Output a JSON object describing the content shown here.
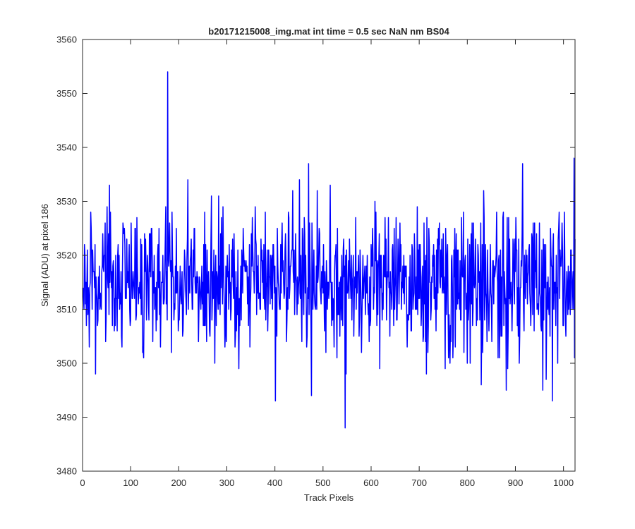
{
  "chart_data": {
    "type": "line",
    "title": "b20171215008_img.mat int time = 0.5 sec  NaN nm BS04",
    "xlabel": "Track Pixels",
    "ylabel": "Signal (ADU) at pixel 186",
    "xlim": [
      0,
      1024
    ],
    "ylim": [
      3480,
      3560
    ],
    "xticks": [
      0,
      100,
      200,
      300,
      400,
      500,
      600,
      700,
      800,
      900,
      1000
    ],
    "yticks": [
      3480,
      3490,
      3500,
      3510,
      3520,
      3530,
      3540,
      3550,
      3560
    ],
    "grid": false,
    "line_color": "#0000ff",
    "series": [
      {
        "x_start": 1,
        "x_step": 1,
        "points_count": 1024,
        "mean": 3515,
        "noise_sd": 6.5,
        "noise_range": [
          3495,
          3537
        ],
        "extremes": [
          {
            "x": 177,
            "y": 3554
          },
          {
            "x": 186,
            "y": 3528
          },
          {
            "x": 401,
            "y": 3493
          },
          {
            "x": 470,
            "y": 3537
          },
          {
            "x": 476,
            "y": 3494
          },
          {
            "x": 546,
            "y": 3488
          },
          {
            "x": 881,
            "y": 3495
          },
          {
            "x": 964,
            "y": 3497
          },
          {
            "x": 977,
            "y": 3493
          },
          {
            "x": 1022,
            "y": 3538
          },
          {
            "x": 1023,
            "y": 3501
          }
        ]
      }
    ]
  }
}
